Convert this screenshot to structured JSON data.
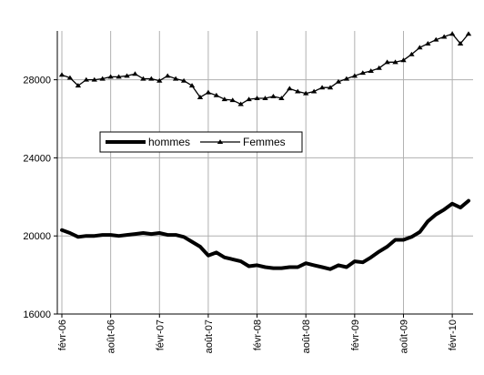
{
  "chart_data": {
    "type": "line",
    "title": "",
    "xlabel": "",
    "ylabel": "",
    "ylim": [
      16000,
      30500
    ],
    "yticks": [
      16000,
      20000,
      24000,
      28000
    ],
    "xticks": [
      "févr-06",
      "août-06",
      "févr-07",
      "août-07",
      "févr-08",
      "août-08",
      "févr-09",
      "août-09",
      "févr-10"
    ],
    "grid": "horizontal",
    "legend_position": "middle-left",
    "colors": {
      "line": "#000000",
      "grid": "#b0b0b0",
      "background": "#ffffff"
    },
    "series": [
      {
        "name": "hommes",
        "style": "thick-line",
        "values": [
          20300,
          20150,
          19950,
          20000,
          20000,
          20050,
          20050,
          20000,
          20050,
          20100,
          20150,
          20100,
          20150,
          20050,
          20050,
          19950,
          19700,
          19450,
          19000,
          19150,
          18900,
          18800,
          18700,
          18450,
          18500,
          18400,
          18350,
          18350,
          18400,
          18400,
          18600,
          18500,
          18400,
          18300,
          18500,
          18400,
          18700,
          18650,
          18900,
          19200,
          19450,
          19800,
          19800,
          19950,
          20200,
          20750,
          21100,
          21350,
          21650,
          21450,
          21800
        ]
      },
      {
        "name": "Femmes",
        "style": "thin-line-triangle-markers",
        "values": [
          28250,
          28100,
          27700,
          28000,
          28000,
          28050,
          28150,
          28150,
          28200,
          28300,
          28050,
          28050,
          27950,
          28200,
          28050,
          27950,
          27700,
          27100,
          27350,
          27200,
          27000,
          26950,
          26750,
          27000,
          27050,
          27050,
          27150,
          27050,
          27550,
          27400,
          27300,
          27400,
          27600,
          27600,
          27900,
          28050,
          28200,
          28350,
          28450,
          28600,
          28900,
          28900,
          29000,
          29300,
          29650,
          29850,
          30050,
          30200,
          30350,
          29850,
          30350
        ]
      }
    ]
  }
}
